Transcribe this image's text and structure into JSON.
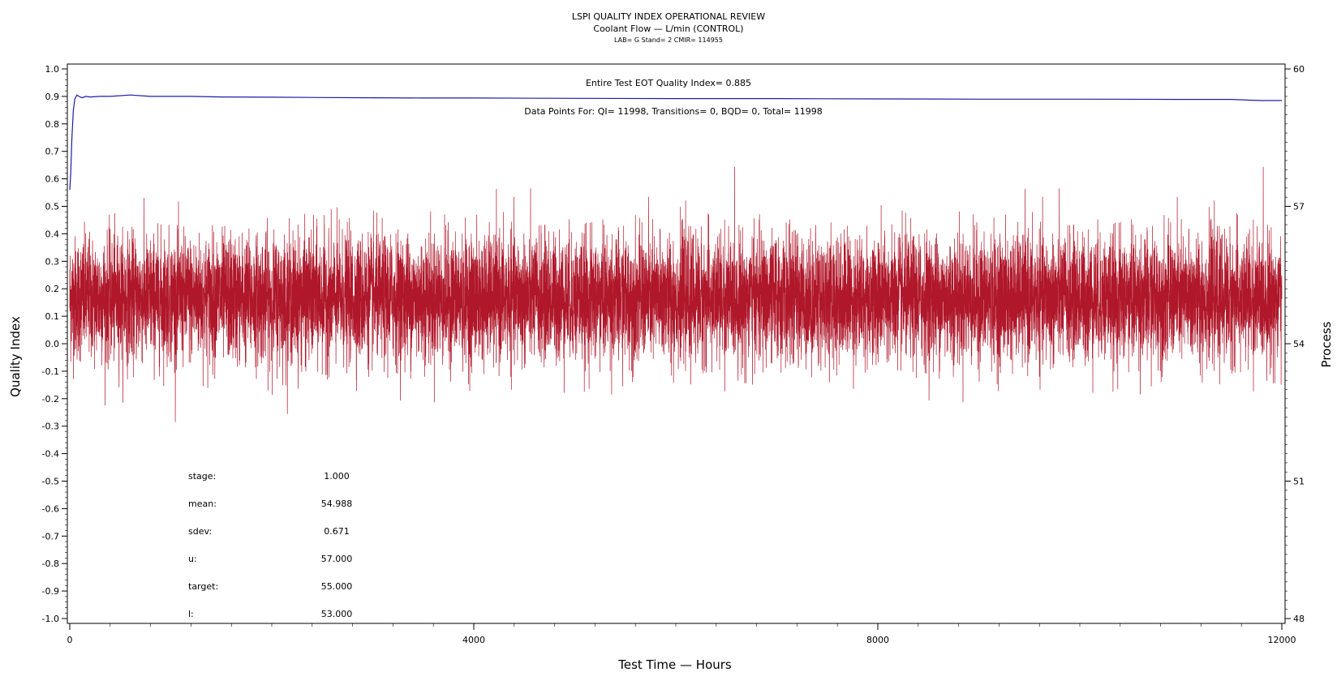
{
  "chart_data": {
    "type": "line",
    "title": "LSPI QUALITY INDEX OPERATIONAL REVIEW",
    "subtitle": "Coolant Flow — L/min (CONTROL)",
    "subtitle2": "LAB= G Stand= 2 CMIR= 114955",
    "xlabel": "Test Time — Hours",
    "ylabel": "Quality Index",
    "y2label": "Process",
    "xlim": [
      0,
      12000
    ],
    "ylim": [
      -1.0,
      1.0
    ],
    "y2lim": [
      48,
      60
    ],
    "x_ticks": [
      "0",
      "4000",
      "8000",
      "12000"
    ],
    "x_tick_values": [
      0,
      4000,
      8000,
      12000
    ],
    "y_ticks": [
      "1.0",
      "0.9",
      "0.8",
      "0.7",
      "0.6",
      "0.5",
      "0.4",
      "0.3",
      "0.2",
      "0.1",
      "0.0",
      "-0.1",
      "-0.2",
      "-0.3",
      "-0.4",
      "-0.5",
      "-0.6",
      "-0.7",
      "-0.8",
      "-0.9",
      "-1.0"
    ],
    "y2_ticks": [
      "60",
      "57",
      "54",
      "51",
      "48"
    ],
    "y2_tick_values": [
      60,
      57,
      54,
      51,
      48
    ],
    "annotation_eot": "Entire Test EOT Quality Index=   0.885",
    "annotation_points": "Data Points For: QI= 11998, Transitions=     0, BQD=     0, Total= 11998",
    "stats": [
      {
        "label": "stage:",
        "value": "1.000"
      },
      {
        "label": "mean:",
        "value": "54.988"
      },
      {
        "label": "sdev:",
        "value": "0.671"
      },
      {
        "label": "u:",
        "value": "57.000"
      },
      {
        "label": "target:",
        "value": "55.000"
      },
      {
        "label": "l:",
        "value": "53.000"
      }
    ],
    "series": [
      {
        "axis": "left",
        "color": "#1c1ca8",
        "x": [
          0,
          10,
          20,
          35,
          50,
          70,
          90,
          120,
          160,
          200,
          300,
          400,
          600,
          800,
          1000,
          1200,
          1500,
          2000,
          2500,
          3000,
          3500,
          4000,
          5000,
          6000,
          7000,
          8000,
          9000,
          10000,
          11000,
          11500,
          11700,
          11800,
          12000
        ],
        "y": [
          0.56,
          0.62,
          0.74,
          0.85,
          0.89,
          0.905,
          0.9,
          0.895,
          0.9,
          0.898,
          0.9,
          0.9,
          0.905,
          0.9,
          0.9,
          0.9,
          0.898,
          0.897,
          0.896,
          0.895,
          0.894,
          0.894,
          0.893,
          0.892,
          0.892,
          0.891,
          0.89,
          0.89,
          0.889,
          0.889,
          0.886,
          0.885,
          0.885
        ]
      },
      {
        "axis": "right",
        "color": "#b0172a",
        "n_points": 11998,
        "mean": 54.988,
        "sdev": 0.671,
        "x_range": [
          0,
          12000
        ]
      }
    ]
  }
}
